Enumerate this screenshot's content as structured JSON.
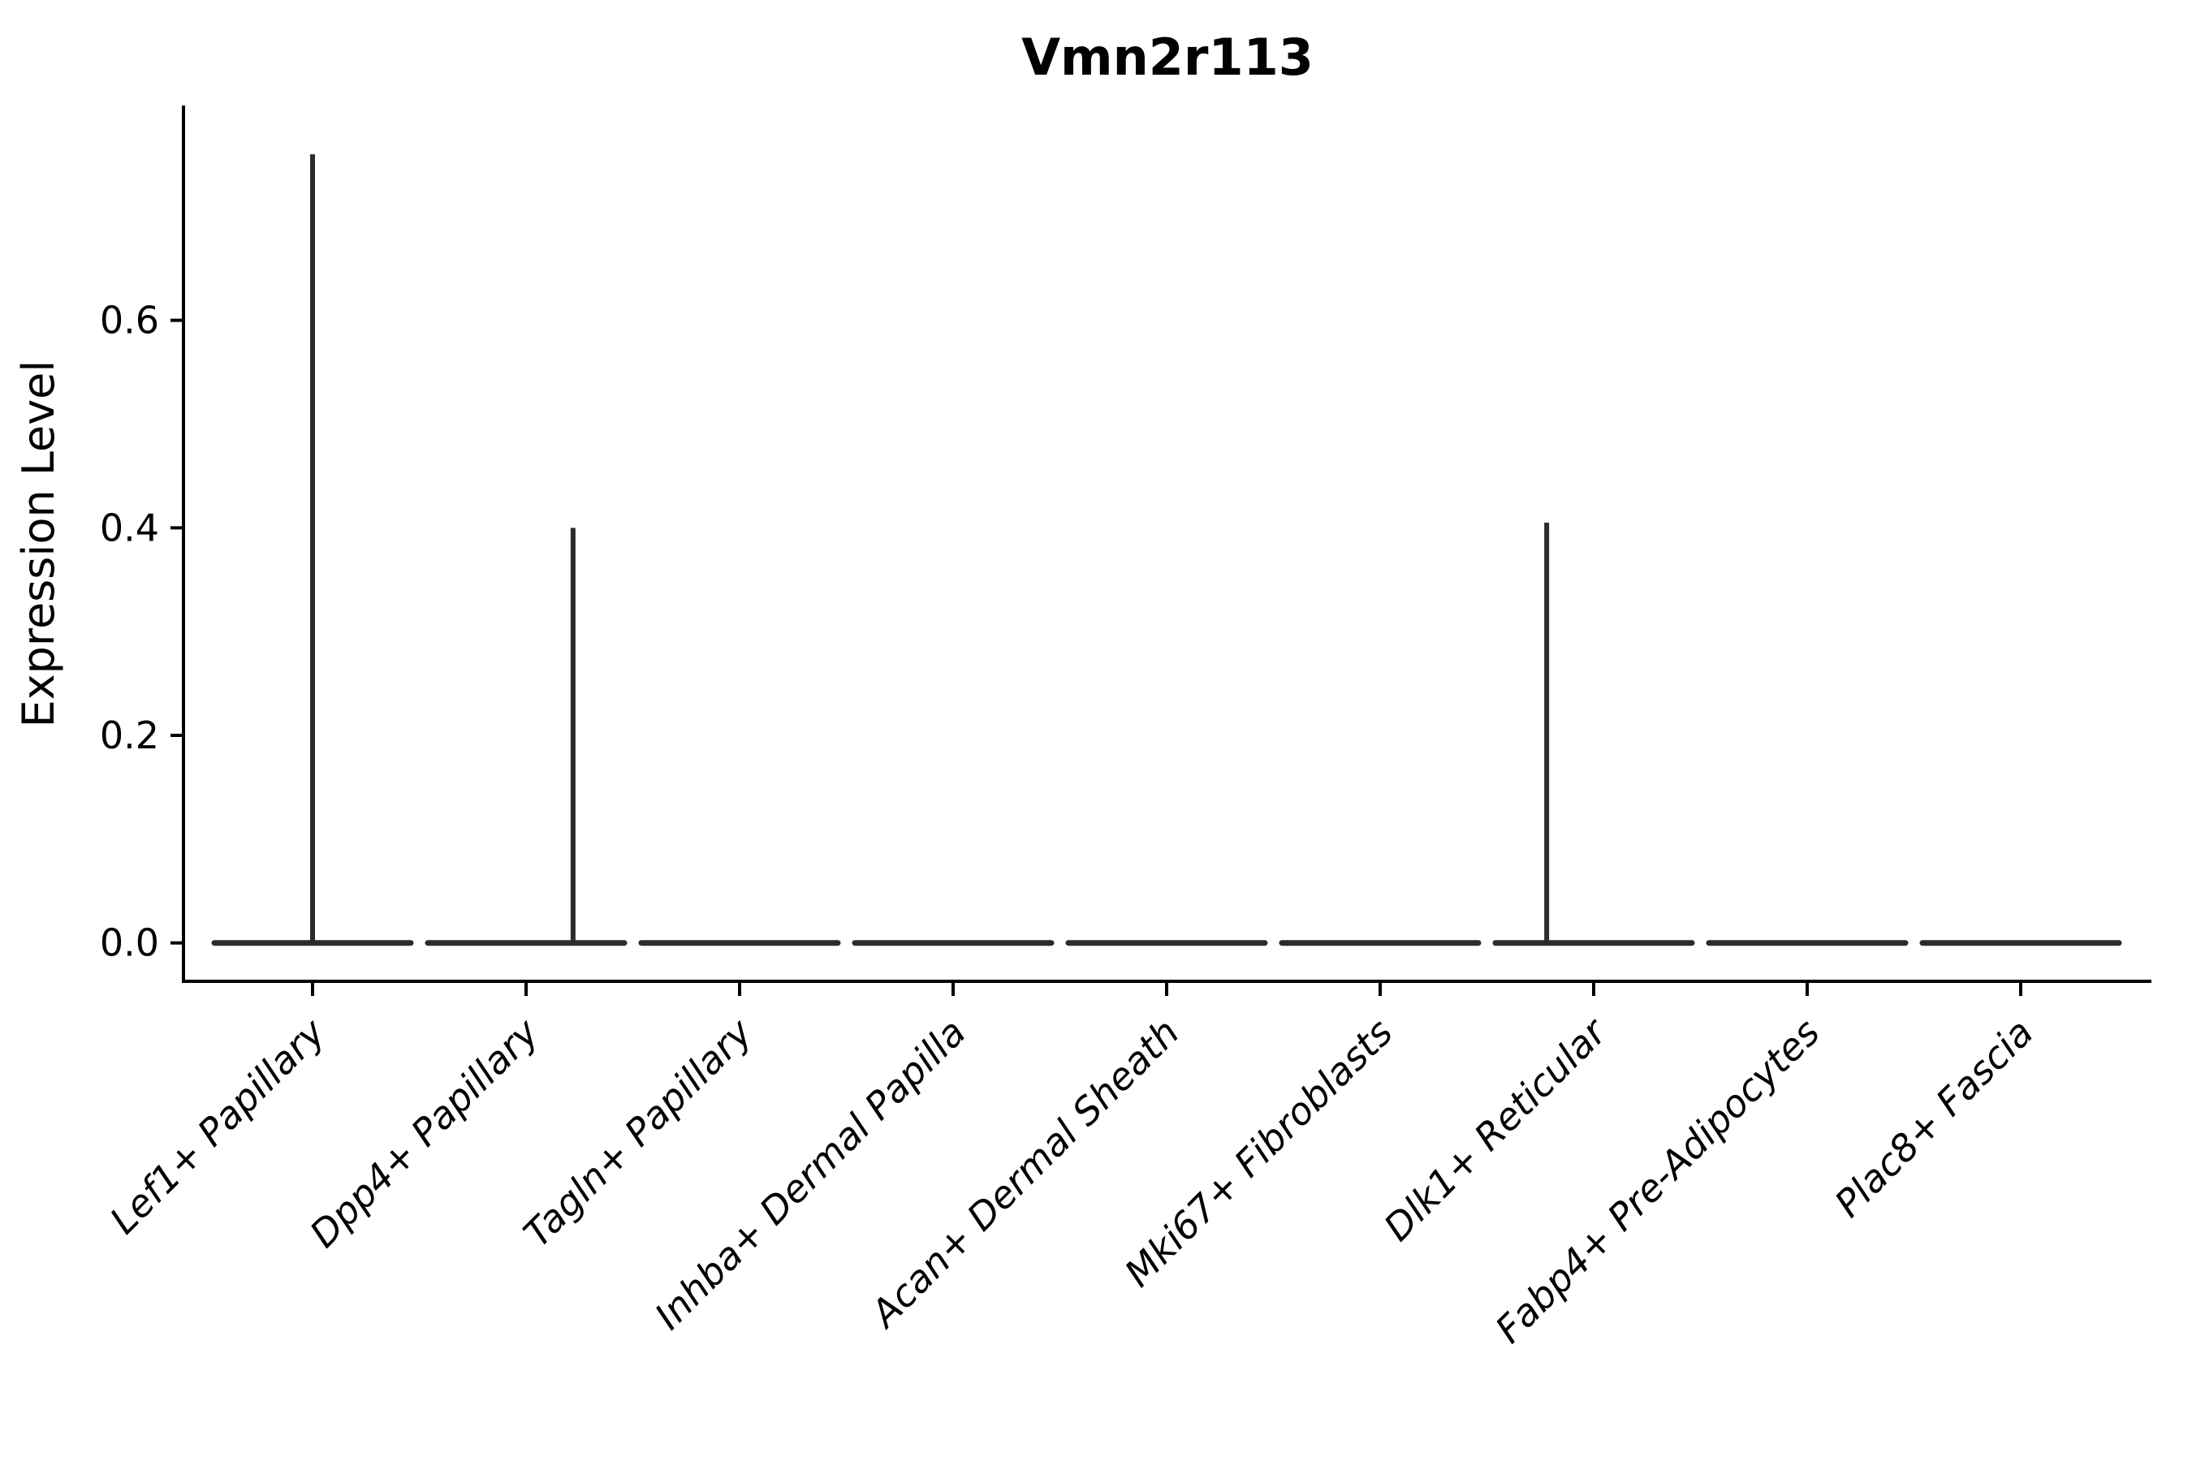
{
  "chart_data": {
    "type": "violin",
    "title": "Vmn2r113",
    "xlabel": "",
    "ylabel": "Expression Level",
    "ylim": [
      -0.037,
      0.807
    ],
    "yticks": [
      0.0,
      0.2,
      0.4,
      0.6
    ],
    "grid": false,
    "legend": "none",
    "axis_color": "#000000",
    "violin_color": "#2b2b2b",
    "categories": [
      "Lef1+ Papillary",
      "Dpp4+ Papillary",
      "Tagln+ Papillary",
      "Inhba+ Dermal Papilla",
      "Acan+ Dermal Sheath",
      "Mki67+ Fibroblasts",
      "Dlk1+ Reticular",
      "Fabp4+ Pre-Adipocytes",
      "Plac8+ Fascia"
    ],
    "violins": [
      {
        "category": "Lef1+ Papillary",
        "zero_density_line": true,
        "max_expression": 0.76,
        "spike_offset": 0.0
      },
      {
        "category": "Dpp4+ Papillary",
        "zero_density_line": true,
        "max_expression": 0.4,
        "spike_offset": 0.22
      },
      {
        "category": "Tagln+ Papillary",
        "zero_density_line": true,
        "max_expression": 0,
        "spike_offset": 0
      },
      {
        "category": "Inhba+ Dermal Papilla",
        "zero_density_line": true,
        "max_expression": 0,
        "spike_offset": 0
      },
      {
        "category": "Acan+ Dermal Sheath",
        "zero_density_line": true,
        "max_expression": 0,
        "spike_offset": 0
      },
      {
        "category": "Mki67+ Fibroblasts",
        "zero_density_line": true,
        "max_expression": 0,
        "spike_offset": 0
      },
      {
        "category": "Dlk1+ Reticular",
        "zero_density_line": true,
        "max_expression": 0.405,
        "spike_offset": -0.22
      },
      {
        "category": "Fabp4+ Pre-Adipocytes",
        "zero_density_line": true,
        "max_expression": 0,
        "spike_offset": 0
      },
      {
        "category": "Plac8+ Fascia",
        "zero_density_line": true,
        "max_expression": 0,
        "spike_offset": 0
      }
    ]
  }
}
